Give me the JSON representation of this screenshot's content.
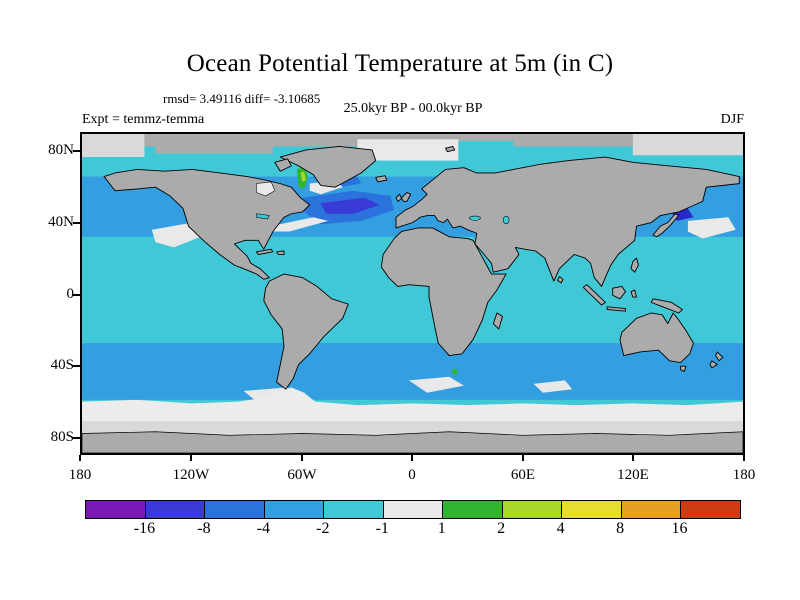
{
  "title": "Ocean Potential Temperature at 5m (in C)",
  "annotations": {
    "stats_line": "rmsd= 3.49116 diff= -3.10685",
    "period_line": "25.0kyr BP - 00.0kyr BP",
    "experiment_label": "Expt = temmz-temma",
    "season_label": "DJF"
  },
  "axes": {
    "lat_ticks": [
      "80N",
      "40N",
      "0",
      "40S",
      "80S"
    ],
    "lon_ticks": [
      "180",
      "120W",
      "60W",
      "0",
      "60E",
      "120E",
      "180"
    ]
  },
  "chart_data": {
    "type": "heatmap",
    "title": "Ocean Potential Temperature at 5m (in C)",
    "variable": "ocean potential temperature difference at 5m depth",
    "units": "C",
    "season": "DJF",
    "experiment": "temmz-temma",
    "period": "25.0kyr BP - 00.0kyr BP",
    "rmsd": 3.49116,
    "diff": -3.10685,
    "projection": "equirectangular world map",
    "lon_range": [
      -180,
      180
    ],
    "lat_range": [
      -90,
      90
    ],
    "lat_ticks": [
      "80N",
      "40N",
      "0",
      "40S",
      "80S"
    ],
    "lon_ticks": [
      "180",
      "120W",
      "60W",
      "0",
      "60E",
      "120E",
      "180"
    ],
    "colorbar": {
      "levels": [
        -16,
        -8,
        -4,
        -2,
        -1,
        1,
        2,
        4,
        8,
        16
      ],
      "labels": [
        "-16",
        "-8",
        "-4",
        "-2",
        "-1",
        "1",
        "2",
        "4",
        "8",
        "16"
      ],
      "colors": [
        "#7A18B4",
        "#3A3AD6",
        "#2B72DC",
        "#349FE0",
        "#41C8D6",
        "#E9E9E9",
        "#30B432",
        "#A8D82C",
        "#E8DC30",
        "#E8A024",
        "#CC3D12"
      ]
    },
    "land_color": "#ABABAB",
    "features": [
      {
        "region": "tropical and subtropical oceans",
        "value_range": "-2 to -1 C (cyan)"
      },
      {
        "region": "mid-latitude ocean bands, both hemispheres",
        "value_range": "-4 to -2 C (blue)"
      },
      {
        "region": "central North Atlantic 40-55N",
        "value_range": "-16 to -4 C (dark blue / indigo core)"
      },
      {
        "region": "western North Atlantic off US east coast",
        "value_range": "-1 to 1 C (white streak)"
      },
      {
        "region": "subtropical Northeast Pacific",
        "value_range": "-1 to 1 C (white patch)"
      },
      {
        "region": "Northwest Pacific east of Japan",
        "value_range": "-16 to -8 C spot beside a near-zero white patch"
      },
      {
        "region": "West Greenland / Davis Strait coast",
        "value_range": "+1 to +4 C (green with yellow-green core)"
      },
      {
        "region": "Southern Ocean patches (S Atlantic, S Indian, Drake Passage)",
        "value_range": "-1 to 1 C (white)"
      },
      {
        "region": "Arctic cap and Antarctic margin",
        "value_range": "masked / near zero (gray and white)"
      }
    ]
  }
}
